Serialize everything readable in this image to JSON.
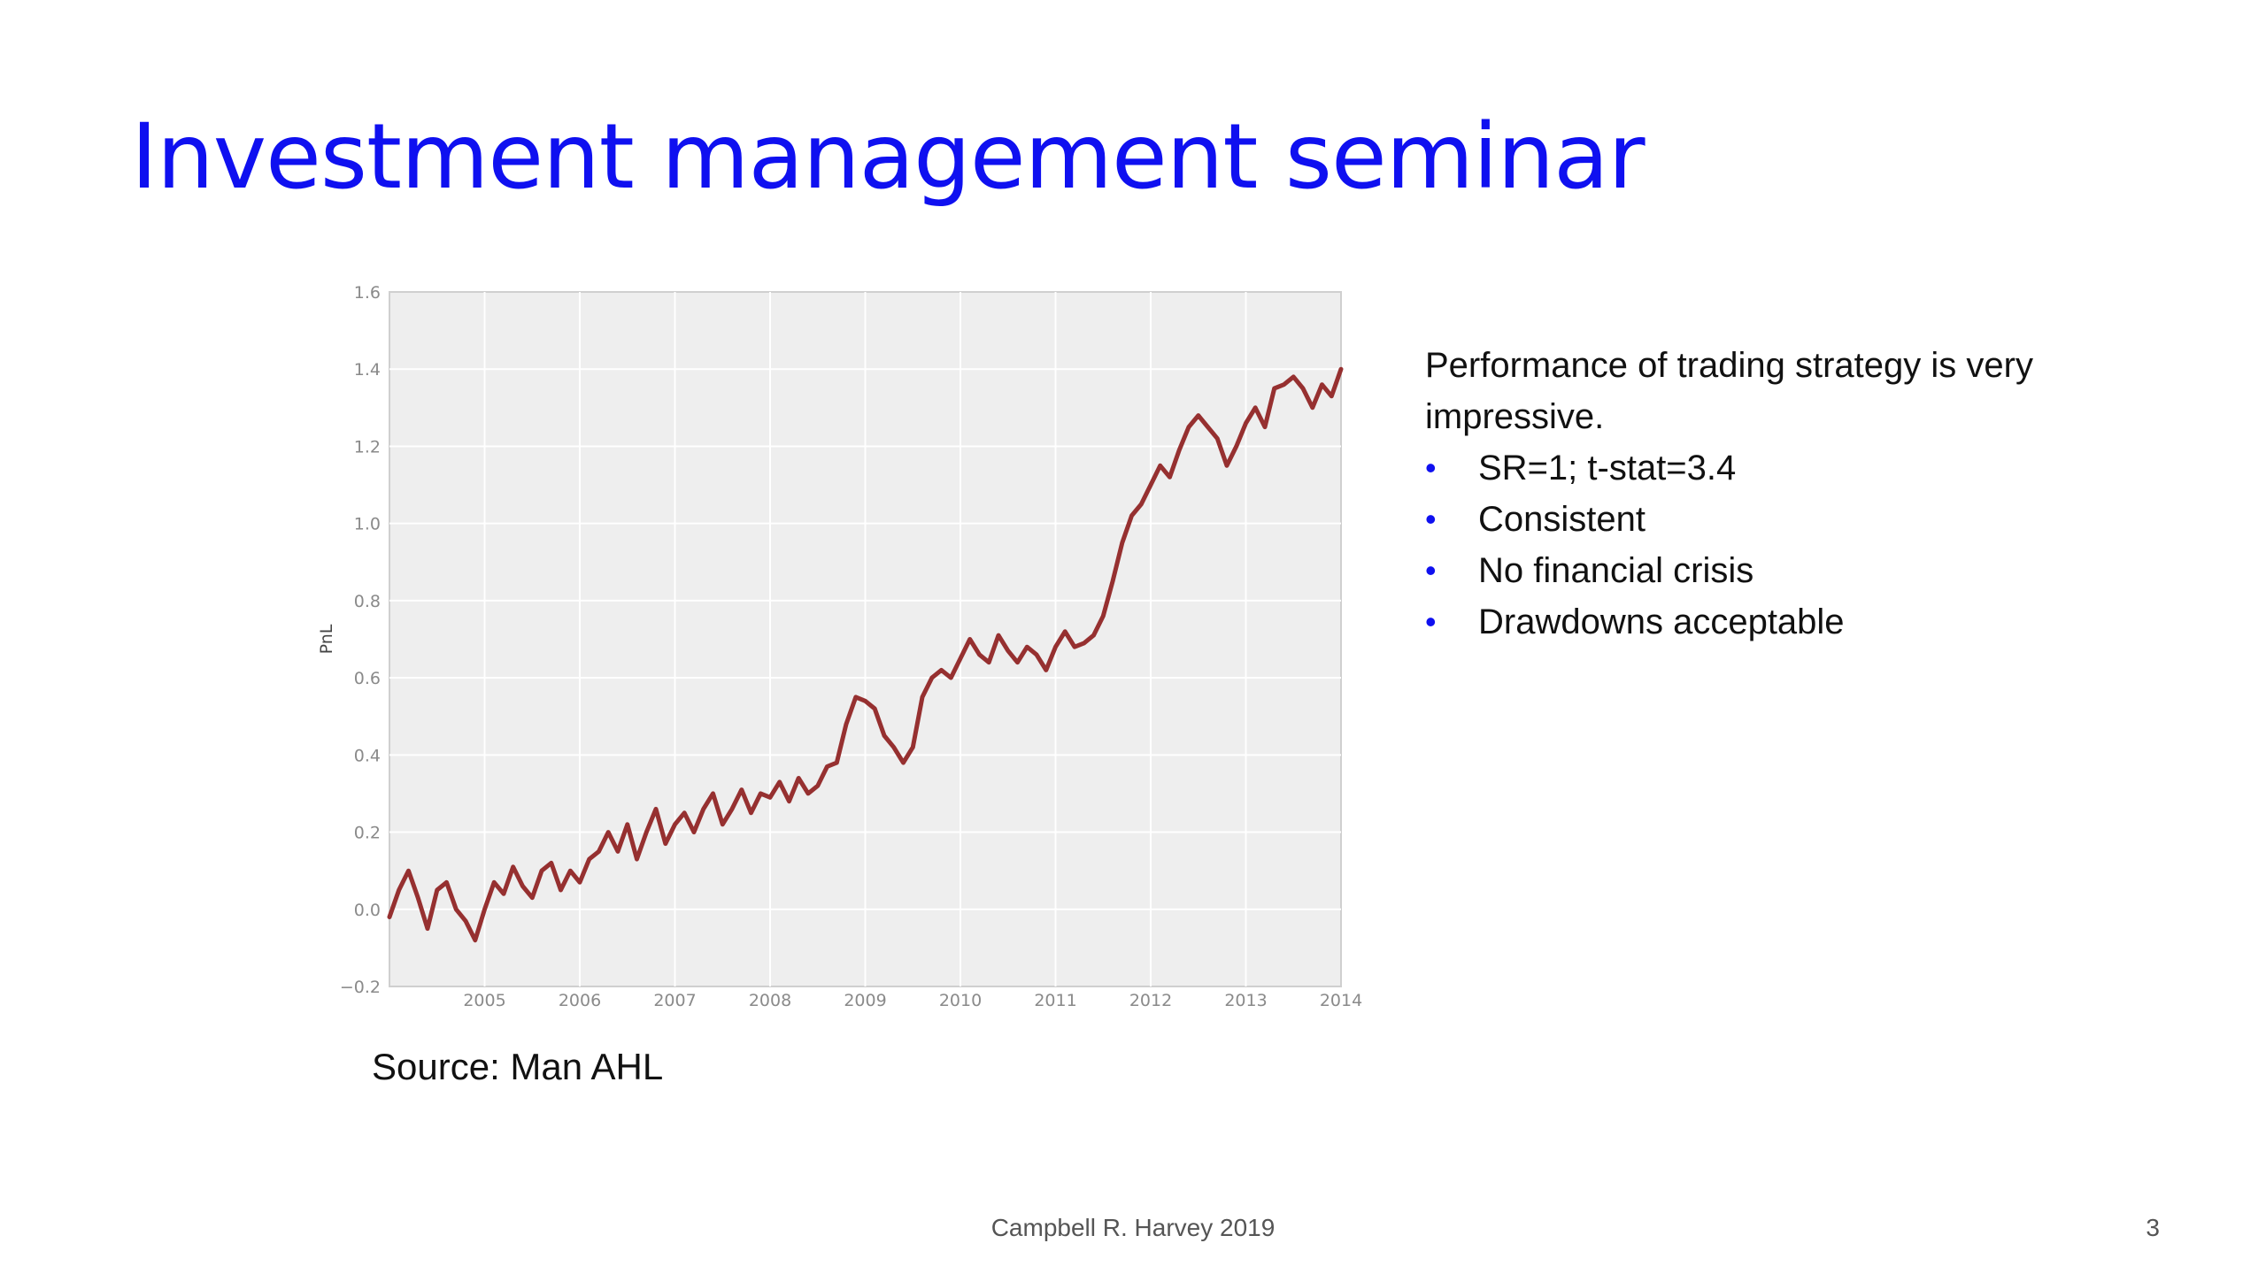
{
  "slide": {
    "title": "Investment management seminar",
    "source": "Source: Man AHL",
    "footer": "Campbell R. Harvey 2019",
    "page_number": "3"
  },
  "bullets": {
    "intro": "Performance of trading strategy is very impressive.",
    "items": [
      "SR=1; t-stat=3.4",
      "Consistent",
      "No financial crisis",
      "Drawdowns acceptable"
    ]
  },
  "colors": {
    "title": "#0f10f0",
    "line": "#963030",
    "plot_bg": "#eeeeee",
    "bullet": "#0f10f0"
  },
  "chart_data": {
    "type": "line",
    "ylabel": "PnL",
    "xlim": [
      2004.0,
      2014.0
    ],
    "ylim": [
      -0.2,
      1.6
    ],
    "x_ticks": [
      "2005",
      "2006",
      "2007",
      "2008",
      "2009",
      "2010",
      "2011",
      "2012",
      "2013",
      "2014"
    ],
    "y_ticks": [
      "−0.2",
      "0.0",
      "0.2",
      "0.4",
      "0.6",
      "0.8",
      "1.0",
      "1.2",
      "1.4",
      "1.6"
    ],
    "grid": true,
    "series": [
      {
        "x": [
          2004.0,
          2004.1,
          2004.2,
          2004.3,
          2004.4,
          2004.5,
          2004.6,
          2004.7,
          2004.8,
          2004.9,
          2005.0,
          2005.1,
          2005.2,
          2005.3,
          2005.4,
          2005.5,
          2005.6,
          2005.7,
          2005.8,
          2005.9,
          2006.0,
          2006.1,
          2006.2,
          2006.3,
          2006.4,
          2006.5,
          2006.6,
          2006.7,
          2006.8,
          2006.9,
          2007.0,
          2007.1,
          2007.2,
          2007.3,
          2007.4,
          2007.5,
          2007.6,
          2007.7,
          2007.8,
          2007.9,
          2008.0,
          2008.1,
          2008.2,
          2008.3,
          2008.4,
          2008.5,
          2008.6,
          2008.7,
          2008.8,
          2008.9,
          2009.0,
          2009.1,
          2009.2,
          2009.3,
          2009.4,
          2009.5,
          2009.6,
          2009.7,
          2009.8,
          2009.9,
          2010.0,
          2010.1,
          2010.2,
          2010.3,
          2010.4,
          2010.5,
          2010.6,
          2010.7,
          2010.8,
          2010.9,
          2011.0,
          2011.1,
          2011.2,
          2011.3,
          2011.4,
          2011.5,
          2011.6,
          2011.7,
          2011.8,
          2011.9,
          2012.0,
          2012.1,
          2012.2,
          2012.3,
          2012.4,
          2012.5,
          2012.6,
          2012.7,
          2012.8,
          2012.9,
          2013.0,
          2013.1,
          2013.2,
          2013.3,
          2013.4,
          2013.5,
          2013.6,
          2013.7,
          2013.8,
          2013.9,
          2014.0
        ],
        "y": [
          -0.02,
          0.05,
          0.1,
          0.03,
          -0.05,
          0.05,
          0.07,
          0.0,
          -0.03,
          -0.08,
          0.0,
          0.07,
          0.04,
          0.11,
          0.06,
          0.03,
          0.1,
          0.12,
          0.05,
          0.1,
          0.07,
          0.13,
          0.15,
          0.2,
          0.15,
          0.22,
          0.13,
          0.2,
          0.26,
          0.17,
          0.22,
          0.25,
          0.2,
          0.26,
          0.3,
          0.22,
          0.26,
          0.31,
          0.25,
          0.3,
          0.29,
          0.33,
          0.28,
          0.34,
          0.3,
          0.32,
          0.37,
          0.38,
          0.48,
          0.55,
          0.54,
          0.52,
          0.45,
          0.42,
          0.38,
          0.42,
          0.55,
          0.6,
          0.62,
          0.6,
          0.65,
          0.7,
          0.66,
          0.64,
          0.71,
          0.67,
          0.64,
          0.68,
          0.66,
          0.62,
          0.68,
          0.72,
          0.68,
          0.69,
          0.71,
          0.76,
          0.85,
          0.95,
          1.02,
          1.05,
          1.1,
          1.15,
          1.12,
          1.19,
          1.25,
          1.28,
          1.25,
          1.22,
          1.15,
          1.2,
          1.26,
          1.3,
          1.25,
          1.35,
          1.36,
          1.38,
          1.35,
          1.3,
          1.36,
          1.33,
          1.4
        ]
      }
    ]
  }
}
